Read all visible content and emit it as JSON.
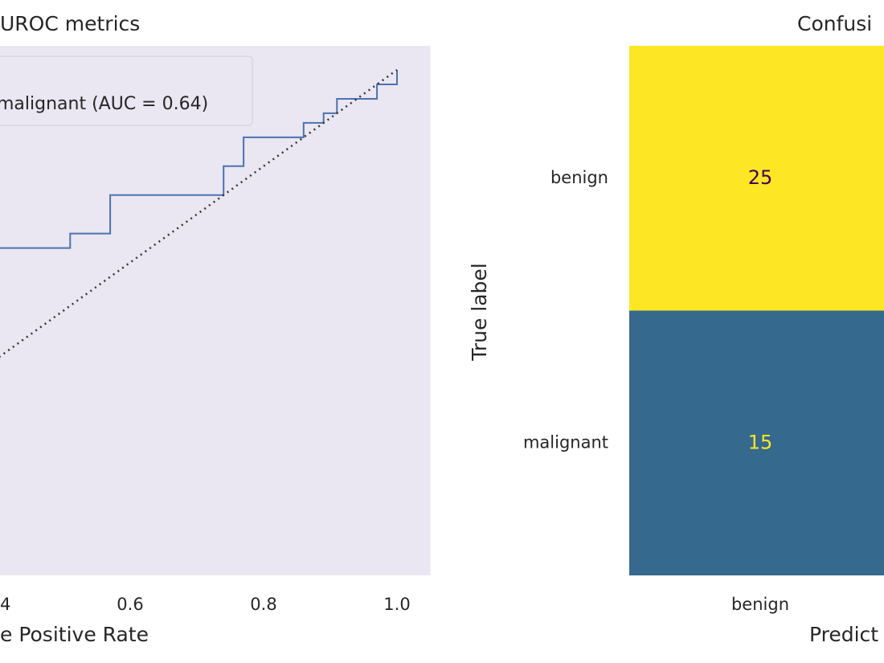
{
  "chart_data": [
    {
      "type": "line",
      "title": "UROC metrics",
      "xlabel": "e Positive Rate",
      "xlim": [
        -0.05,
        1.05
      ],
      "ylim": [
        -0.05,
        1.05
      ],
      "xticks": [
        {
          "value": 0.4,
          "label": "4"
        },
        0.6,
        0.8,
        {
          "value": 1,
          "label": "1.0"
        }
      ],
      "grid": false,
      "legend": "upper left",
      "background": "#eae6f2",
      "series": [
        {
          "name": "malignant (AUC = 0.64)",
          "color": "#4c72b0",
          "linestyle": "solid",
          "x": [
            0.4,
            0.51,
            0.51,
            0.57,
            0.57,
            0.74,
            0.74,
            0.77,
            0.77,
            0.86,
            0.86,
            0.89,
            0.89,
            0.91,
            0.91,
            0.97,
            0.97,
            1.0,
            1.0
          ],
          "values": [
            0.63,
            0.63,
            0.66,
            0.66,
            0.74,
            0.74,
            0.8,
            0.8,
            0.86,
            0.86,
            0.89,
            0.89,
            0.91,
            0.91,
            0.94,
            0.94,
            0.97,
            0.97,
            1.0
          ]
        },
        {
          "color": "#333333",
          "linestyle": "dotted",
          "x": [
            0,
            1
          ],
          "values": [
            0,
            1
          ]
        }
      ]
    },
    {
      "type": "heatmap",
      "title": "Confusi",
      "xlabel": "Predict",
      "ylabel": "True label",
      "categories": [
        "benign"
      ],
      "y_categories": [
        "benign",
        "malignant"
      ],
      "values": [
        [
          25
        ],
        [
          15
        ]
      ],
      "colors": [
        [
          "#fde725"
        ],
        [
          "#35698e"
        ]
      ],
      "text_colors": [
        [
          "#440154"
        ],
        [
          "#fde725"
        ]
      ]
    }
  ]
}
